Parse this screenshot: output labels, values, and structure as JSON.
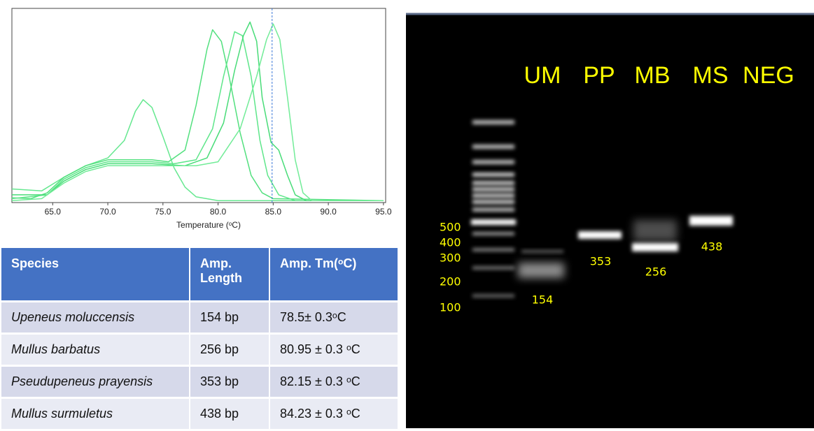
{
  "chart_data": {
    "type": "line",
    "xlabel": "Temperature (ᵒC)",
    "xlim": [
      61.3,
      95.2
    ],
    "ylim": [
      0,
      100
    ],
    "xticks": [
      {
        "value": 65,
        "label": "65.0"
      },
      {
        "value": 70,
        "label": "70.0"
      },
      {
        "value": 75,
        "label": "75.0"
      },
      {
        "value": 80,
        "label": "80.0"
      },
      {
        "value": 85,
        "label": "85.0"
      },
      {
        "value": 90,
        "label": "90.0"
      },
      {
        "value": 95,
        "label": "95.0"
      }
    ],
    "vline": 84.9,
    "series": [
      {
        "color": "#66e890",
        "x": [
          61.3,
          64,
          66,
          68,
          70,
          71.5,
          72.5,
          73.2,
          74,
          75,
          76,
          77,
          78,
          80,
          95
        ],
        "values": [
          7,
          6,
          13,
          19,
          23,
          32,
          47,
          53,
          49,
          34,
          18,
          8,
          3,
          1,
          1
        ]
      },
      {
        "color": "#52e07e",
        "x": [
          61.3,
          63,
          64.5,
          66,
          68,
          70,
          72,
          74,
          75.5,
          77,
          78,
          79,
          79.5,
          80.3,
          81,
          82,
          83,
          84,
          85,
          95
        ],
        "values": [
          2.5,
          2,
          5,
          13,
          19,
          22,
          22,
          22,
          21,
          27,
          50,
          79,
          89,
          83,
          65,
          36,
          14,
          5,
          2,
          1
        ]
      },
      {
        "color": "#5ee68a",
        "x": [
          61.3,
          64.5,
          66,
          68,
          70,
          74,
          76,
          78,
          79.5,
          80.5,
          81.5,
          82.2,
          83,
          83.8,
          84.5,
          85.5,
          87,
          95
        ],
        "values": [
          2,
          4,
          12,
          18,
          21,
          21,
          20,
          22,
          38,
          65,
          88,
          86,
          65,
          32,
          14,
          4,
          1,
          1
        ]
      },
      {
        "color": "#48dc78",
        "x": [
          61.3,
          64.5,
          66,
          68,
          70,
          74,
          77,
          79,
          80.5,
          81.5,
          82.3,
          82.9,
          83.5,
          84,
          84.8,
          85.5,
          86.3,
          87,
          88,
          95
        ],
        "values": [
          4,
          4,
          11,
          17,
          20,
          20,
          19,
          23,
          41,
          68,
          86,
          93,
          83,
          54,
          31,
          27,
          14,
          4,
          1,
          1
        ]
      },
      {
        "color": "#72ec98",
        "x": [
          61.3,
          64,
          66,
          68,
          70,
          74,
          78,
          80,
          82,
          83.5,
          84.4,
          85,
          85.6,
          86.3,
          87,
          87.7,
          88.5,
          95
        ],
        "values": [
          1,
          2,
          10,
          16,
          19,
          19,
          19,
          21,
          38,
          65,
          84,
          92,
          84,
          54,
          22,
          5,
          1,
          1
        ]
      }
    ]
  },
  "table": {
    "header": [
      "Species",
      "Amp. Length",
      "Amp. Tm(ᵒC)"
    ],
    "rows": [
      [
        "Upeneus moluccensis",
        "154 bp",
        "78.5± 0.3ᵒC"
      ],
      [
        "Mullus barbatus",
        "256 bp",
        "80.95 ± 0.3 ᵒC"
      ],
      [
        "Pseudupeneus prayensis",
        "353 bp",
        "82.15 ± 0.3 ᵒC"
      ],
      [
        "Mullus surmuletus",
        "438 bp",
        "84.23 ± 0.3 ᵒC"
      ]
    ]
  },
  "gel": {
    "lane_labels": [
      "UM",
      "PP",
      "MB",
      "MS",
      "NEG"
    ],
    "ladder_labels": [
      "500",
      "400",
      "300",
      "200",
      "100"
    ],
    "band_labels": [
      "154",
      "353",
      "256",
      "438"
    ]
  }
}
